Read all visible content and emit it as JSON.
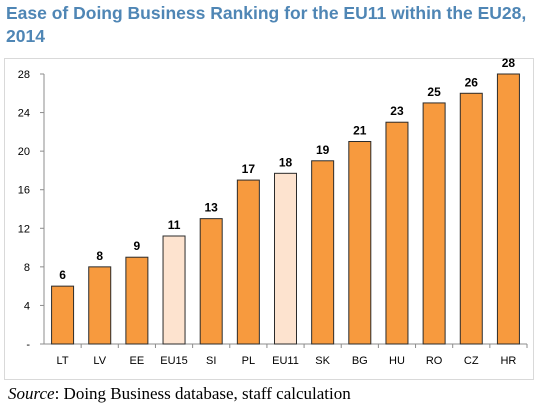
{
  "title": "Ease of Doing Business Ranking for the EU11 within the EU28, 2014",
  "source": {
    "label": "Source",
    "text": ": Doing Business database, staff calculation"
  },
  "colors": {
    "main": "#f79a3e",
    "highlight": "#fde3cf",
    "border": "#2b2b2b",
    "title": "#4f86b5"
  },
  "chart_data": {
    "type": "bar",
    "title": "Ease of Doing Business Ranking for the EU11 within the EU28, 2014",
    "categories": [
      "LT",
      "LV",
      "EE",
      "EU15",
      "SI",
      "PL",
      "EU11",
      "SK",
      "BG",
      "HU",
      "RO",
      "CZ",
      "HR"
    ],
    "values": [
      6,
      8,
      9,
      11.2,
      13,
      17,
      17.7,
      19,
      21,
      23,
      25,
      26,
      28
    ],
    "data_labels": [
      "6",
      "8",
      "9",
      "11",
      "13",
      "17",
      "18",
      "19",
      "21",
      "23",
      "25",
      "26",
      "28"
    ],
    "highlight": [
      false,
      false,
      false,
      true,
      false,
      false,
      true,
      false,
      false,
      false,
      false,
      false,
      false
    ],
    "ylim": [
      0,
      28
    ],
    "yticks": [
      0,
      4,
      8,
      12,
      16,
      20,
      24,
      28
    ],
    "ytick_labels": [
      "-",
      "4",
      "8",
      "12",
      "16",
      "20",
      "24",
      "28"
    ],
    "grid": false,
    "legend": "none"
  }
}
